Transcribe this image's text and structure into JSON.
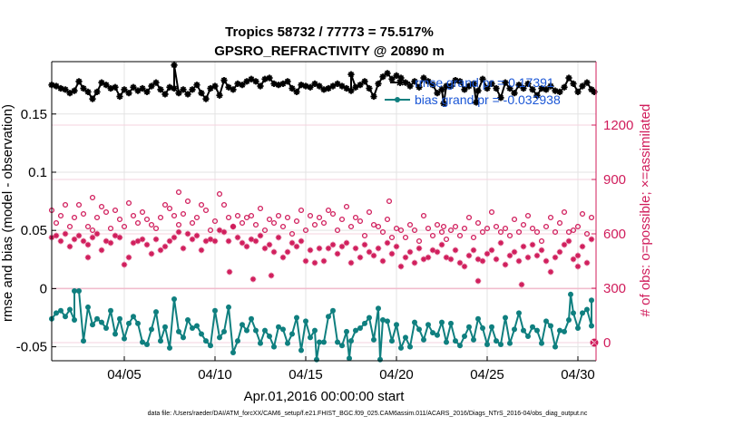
{
  "chart_data": {
    "type": "line",
    "title_line1": "Tropics 58732 / 77773 = 75.517%",
    "title_line2": "GPSRO_REFRACTIVITY @ 20890 m",
    "xlabel": "Apr.01,2016 00:00:00 start",
    "ylabel_left": "rmse and bias (model - observation)",
    "ylabel_right": "# of obs: o=possible; ×=assimilated",
    "footer": "data file: /Users/raeder/DAI/ATM_forcXX/CAM6_setup/f.e21.FHIST_BGC.f09_025.CAM6assim.011/ACARS_2016/Diags_NTrS_2016-04/obs_diag_output.nc",
    "xlim": [
      1,
      31
    ],
    "ylim_left": [
      -0.062,
      0.195
    ],
    "ylim_right": [
      -100,
      1550
    ],
    "x_ticks": [
      5,
      10,
      15,
      20,
      25,
      30
    ],
    "x_tick_labels": [
      "04/05",
      "04/10",
      "04/15",
      "04/20",
      "04/25",
      "04/30"
    ],
    "y_left_ticks": [
      -0.05,
      0,
      0.05,
      0.1,
      0.15
    ],
    "y_left_tick_labels": [
      "-0.05",
      "0",
      "0.05",
      "0.1",
      "0.15"
    ],
    "y_right_ticks": [
      0,
      300,
      600,
      900,
      1200
    ],
    "y_right_tick_labels": [
      "0",
      "300",
      "600",
      "900",
      "1200"
    ],
    "zero_line": 0,
    "grid": true,
    "legend": {
      "position": "top-right",
      "entries": [
        "rmse grand pr = 0.17391",
        "bias grand pr = -0.032938"
      ]
    },
    "colors": {
      "rmse": "#000000",
      "bias": "#0f7f7f",
      "obs": "#d01c5b"
    },
    "x_start": 1.0,
    "x_step": 0.25,
    "series": [
      {
        "name": "rmse",
        "axis": "left",
        "values": [
          0.175,
          0.174,
          0.172,
          0.171,
          0.168,
          0.17,
          0.178,
          0.172,
          0.169,
          0.163,
          0.169,
          0.177,
          0.175,
          0.172,
          0.173,
          0.165,
          0.171,
          0.168,
          0.173,
          0.17,
          0.172,
          0.169,
          0.174,
          0.177,
          0.171,
          0.167,
          0.173,
          0.172,
          0.168,
          0.171,
          0.167,
          0.171,
          0.175,
          0.168,
          0.163,
          0.172,
          0.174,
          0.166,
          0.179,
          0.173,
          0.171,
          0.176,
          0.175,
          0.178,
          0.18,
          0.178,
          0.174,
          0.18,
          0.181,
          0.176,
          0.175,
          0.176,
          0.178,
          0.172,
          0.169,
          0.175,
          0.174,
          0.173,
          0.176,
          0.174,
          0.171,
          0.172,
          0.174,
          0.176,
          0.174,
          0.172,
          0.17,
          0.173,
          0.175,
          0.178,
          0.172,
          0.165,
          0.176,
          0.182,
          0.185,
          0.18,
          0.183,
          0.181,
          0.177,
          0.174,
          0.178,
          0.173,
          0.181,
          0.178,
          0.175,
          0.168,
          0.171,
          0.174,
          0.174,
          0.179,
          0.178,
          0.171,
          0.174,
          0.176,
          0.17,
          0.18,
          0.172,
          0.176,
          0.172,
          0.164,
          0.177,
          0.172,
          0.168,
          0.175,
          0.172,
          0.176,
          0.171,
          0.166,
          0.172,
          0.171,
          0.174,
          0.17,
          0.169,
          0.173,
          0.181,
          0.176,
          0.169,
          0.174,
          0.177,
          0.171
        ],
        "extra_points": [
          {
            "x": 7.75,
            "y": 0.192
          },
          {
            "x": 17.5,
            "y": 0.184
          },
          {
            "x": 22.6,
            "y": 0.159
          },
          {
            "x": 24.4,
            "y": 0.16
          },
          {
            "x": 30.9,
            "y": 0.169
          }
        ]
      },
      {
        "name": "bias",
        "axis": "left",
        "values": [
          -0.026,
          -0.021,
          -0.019,
          -0.024,
          -0.018,
          -0.027,
          -0.002,
          -0.045,
          -0.016,
          -0.031,
          -0.026,
          -0.029,
          -0.034,
          -0.019,
          -0.039,
          -0.026,
          -0.043,
          -0.03,
          -0.024,
          -0.03,
          -0.046,
          -0.048,
          -0.035,
          -0.02,
          -0.045,
          -0.033,
          -0.051,
          -0.009,
          -0.037,
          -0.042,
          -0.027,
          -0.034,
          -0.032,
          -0.039,
          -0.045,
          -0.049,
          -0.019,
          -0.042,
          -0.037,
          -0.016,
          -0.055,
          -0.045,
          -0.031,
          -0.036,
          -0.026,
          -0.036,
          -0.047,
          -0.036,
          -0.041,
          -0.05,
          -0.033,
          -0.035,
          -0.047,
          -0.039,
          -0.025,
          -0.053,
          -0.028,
          -0.042,
          -0.036,
          -0.046,
          -0.046,
          -0.024,
          -0.019,
          -0.046,
          -0.049,
          -0.037,
          -0.045,
          -0.036,
          -0.034,
          -0.03,
          -0.025,
          -0.044,
          -0.017,
          -0.027,
          -0.028,
          -0.045,
          -0.031,
          -0.051,
          -0.042,
          -0.05,
          -0.029,
          -0.035,
          -0.044,
          -0.031,
          -0.038,
          -0.04,
          -0.029,
          -0.046,
          -0.03,
          -0.045,
          -0.049,
          -0.041,
          -0.033,
          -0.044,
          -0.026,
          -0.034,
          -0.048,
          -0.033,
          -0.045,
          -0.048,
          -0.025,
          -0.047,
          -0.035,
          -0.021,
          -0.036,
          -0.041,
          -0.033,
          -0.036,
          -0.047,
          -0.028,
          -0.032,
          -0.05,
          -0.036,
          -0.037,
          -0.027,
          -0.021,
          -0.034,
          -0.021,
          -0.018,
          -0.032
        ],
        "extra_points": [
          {
            "x": 2.25,
            "y": -0.002
          },
          {
            "x": 15.6,
            "y": -0.061
          },
          {
            "x": 17.4,
            "y": -0.06
          },
          {
            "x": 19.1,
            "y": -0.061
          },
          {
            "x": 29.6,
            "y": -0.005
          },
          {
            "x": 30.75,
            "y": -0.01
          }
        ]
      },
      {
        "name": "possible",
        "axis": "right",
        "values": [
          730,
          660,
          700,
          760,
          640,
          690,
          760,
          710,
          640,
          620,
          690,
          750,
          720,
          630,
          730,
          680,
          640,
          770,
          700,
          660,
          720,
          680,
          650,
          630,
          690,
          760,
          740,
          700,
          650,
          710,
          780,
          660,
          690,
          760,
          730,
          620,
          670,
          820,
          760,
          690,
          640,
          700,
          660,
          690,
          700,
          650,
          740,
          620,
          680,
          660,
          700,
          640,
          690,
          600,
          670,
          730,
          620,
          700,
          650,
          690,
          660,
          730,
          710,
          620,
          680,
          750,
          640,
          690,
          670,
          590,
          720,
          650,
          640,
          610,
          680,
          580,
          630,
          620,
          580,
          650,
          620,
          560,
          700,
          630,
          590,
          650,
          610,
          570,
          620,
          640,
          590,
          630,
          690,
          580,
          660,
          610,
          630,
          720,
          640,
          610,
          630,
          590,
          680,
          610,
          650,
          700,
          630,
          610,
          560,
          640,
          690,
          610,
          660,
          720,
          610,
          620,
          640,
          710,
          600,
          690
        ],
        "extra_points": [
          {
            "x": 3.25,
            "y": 800
          },
          {
            "x": 8.0,
            "y": 830
          },
          {
            "x": 19.6,
            "y": 780
          },
          {
            "x": 22.6,
            "y": 640
          }
        ]
      },
      {
        "name": "assimilated",
        "axis": "right",
        "values": [
          580,
          590,
          560,
          600,
          530,
          570,
          590,
          560,
          540,
          580,
          600,
          510,
          560,
          550,
          590,
          580,
          430,
          470,
          550,
          560,
          570,
          540,
          490,
          570,
          510,
          530,
          560,
          580,
          610,
          520,
          600,
          570,
          590,
          510,
          560,
          570,
          560,
          620,
          610,
          560,
          640,
          580,
          550,
          530,
          570,
          560,
          590,
          520,
          540,
          500,
          580,
          470,
          500,
          550,
          530,
          560,
          450,
          510,
          440,
          520,
          450,
          520,
          540,
          490,
          530,
          550,
          440,
          520,
          470,
          540,
          500,
          480,
          520,
          450,
          550,
          490,
          530,
          420,
          470,
          500,
          440,
          520,
          460,
          470,
          510,
          500,
          540,
          470,
          460,
          510,
          440,
          420,
          480,
          510,
          460,
          450,
          490,
          510,
          460,
          550,
          430,
          480,
          500,
          450,
          530,
          470,
          540,
          480,
          510,
          450,
          390,
          470,
          500,
          540,
          560,
          460,
          480,
          530,
          440,
          570
        ],
        "extra_points": [
          {
            "x": 3.0,
            "y": 470
          },
          {
            "x": 10.8,
            "y": 390
          },
          {
            "x": 12.1,
            "y": 350
          },
          {
            "x": 13.1,
            "y": 370
          },
          {
            "x": 24.5,
            "y": 340
          },
          {
            "x": 26.9,
            "y": 320
          },
          {
            "x": 30.0,
            "y": 420
          }
        ]
      }
    ]
  }
}
